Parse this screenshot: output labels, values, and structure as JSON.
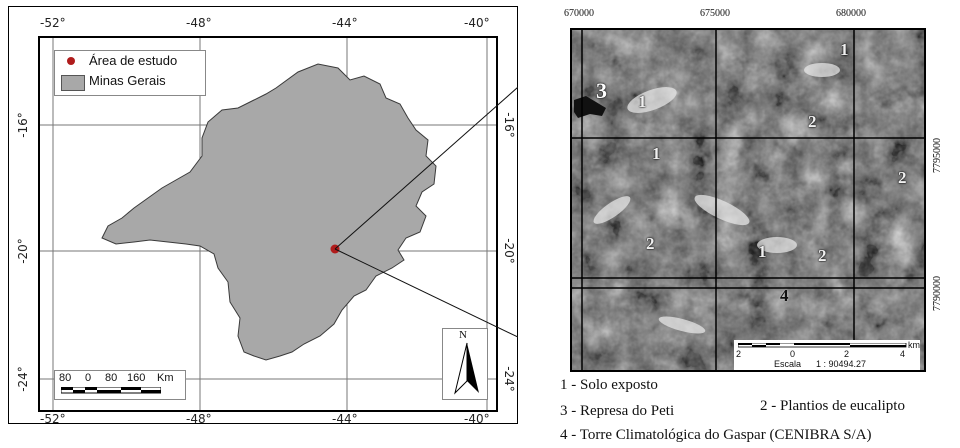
{
  "left_map": {
    "top_ticks": [
      "-52°",
      "-48°",
      "-44°",
      "-40°"
    ],
    "bottom_ticks": [
      "-52°",
      "-48°",
      "-44°",
      "-40°"
    ],
    "left_ticks": [
      "-16°",
      "-20°",
      "-24°"
    ],
    "right_ticks": [
      "-16°",
      "-20°",
      "-24°"
    ],
    "legend": {
      "study_area": "Área de estudo",
      "state": "Minas Gerais"
    },
    "scale_bar": {
      "labels": [
        "80",
        "0",
        "80",
        "160"
      ],
      "unit": "Km"
    },
    "north": "N",
    "colors": {
      "state_fill": "#a8a8a8",
      "study_point": "#b01c1c"
    }
  },
  "right_map": {
    "top_coords": [
      "670000",
      "675000",
      "680000"
    ],
    "right_coords": [
      "7795000",
      "7790000"
    ],
    "labels": [
      "3",
      "1",
      "1",
      "1",
      "1",
      "2",
      "2",
      "2",
      "2",
      "4",
      "1"
    ],
    "scale": {
      "ticks": [
        "2",
        "0",
        "2",
        "4"
      ],
      "unit": "km",
      "text": "Escala",
      "ratio": "1 : 90494.27"
    }
  },
  "legend_lines": [
    "1 - Solo exposto",
    "2 - Plantios de eucalipto",
    "3 - Represa do Peti",
    "4 - Torre Climatológica do Gaspar (CENIBRA S/A)"
  ]
}
